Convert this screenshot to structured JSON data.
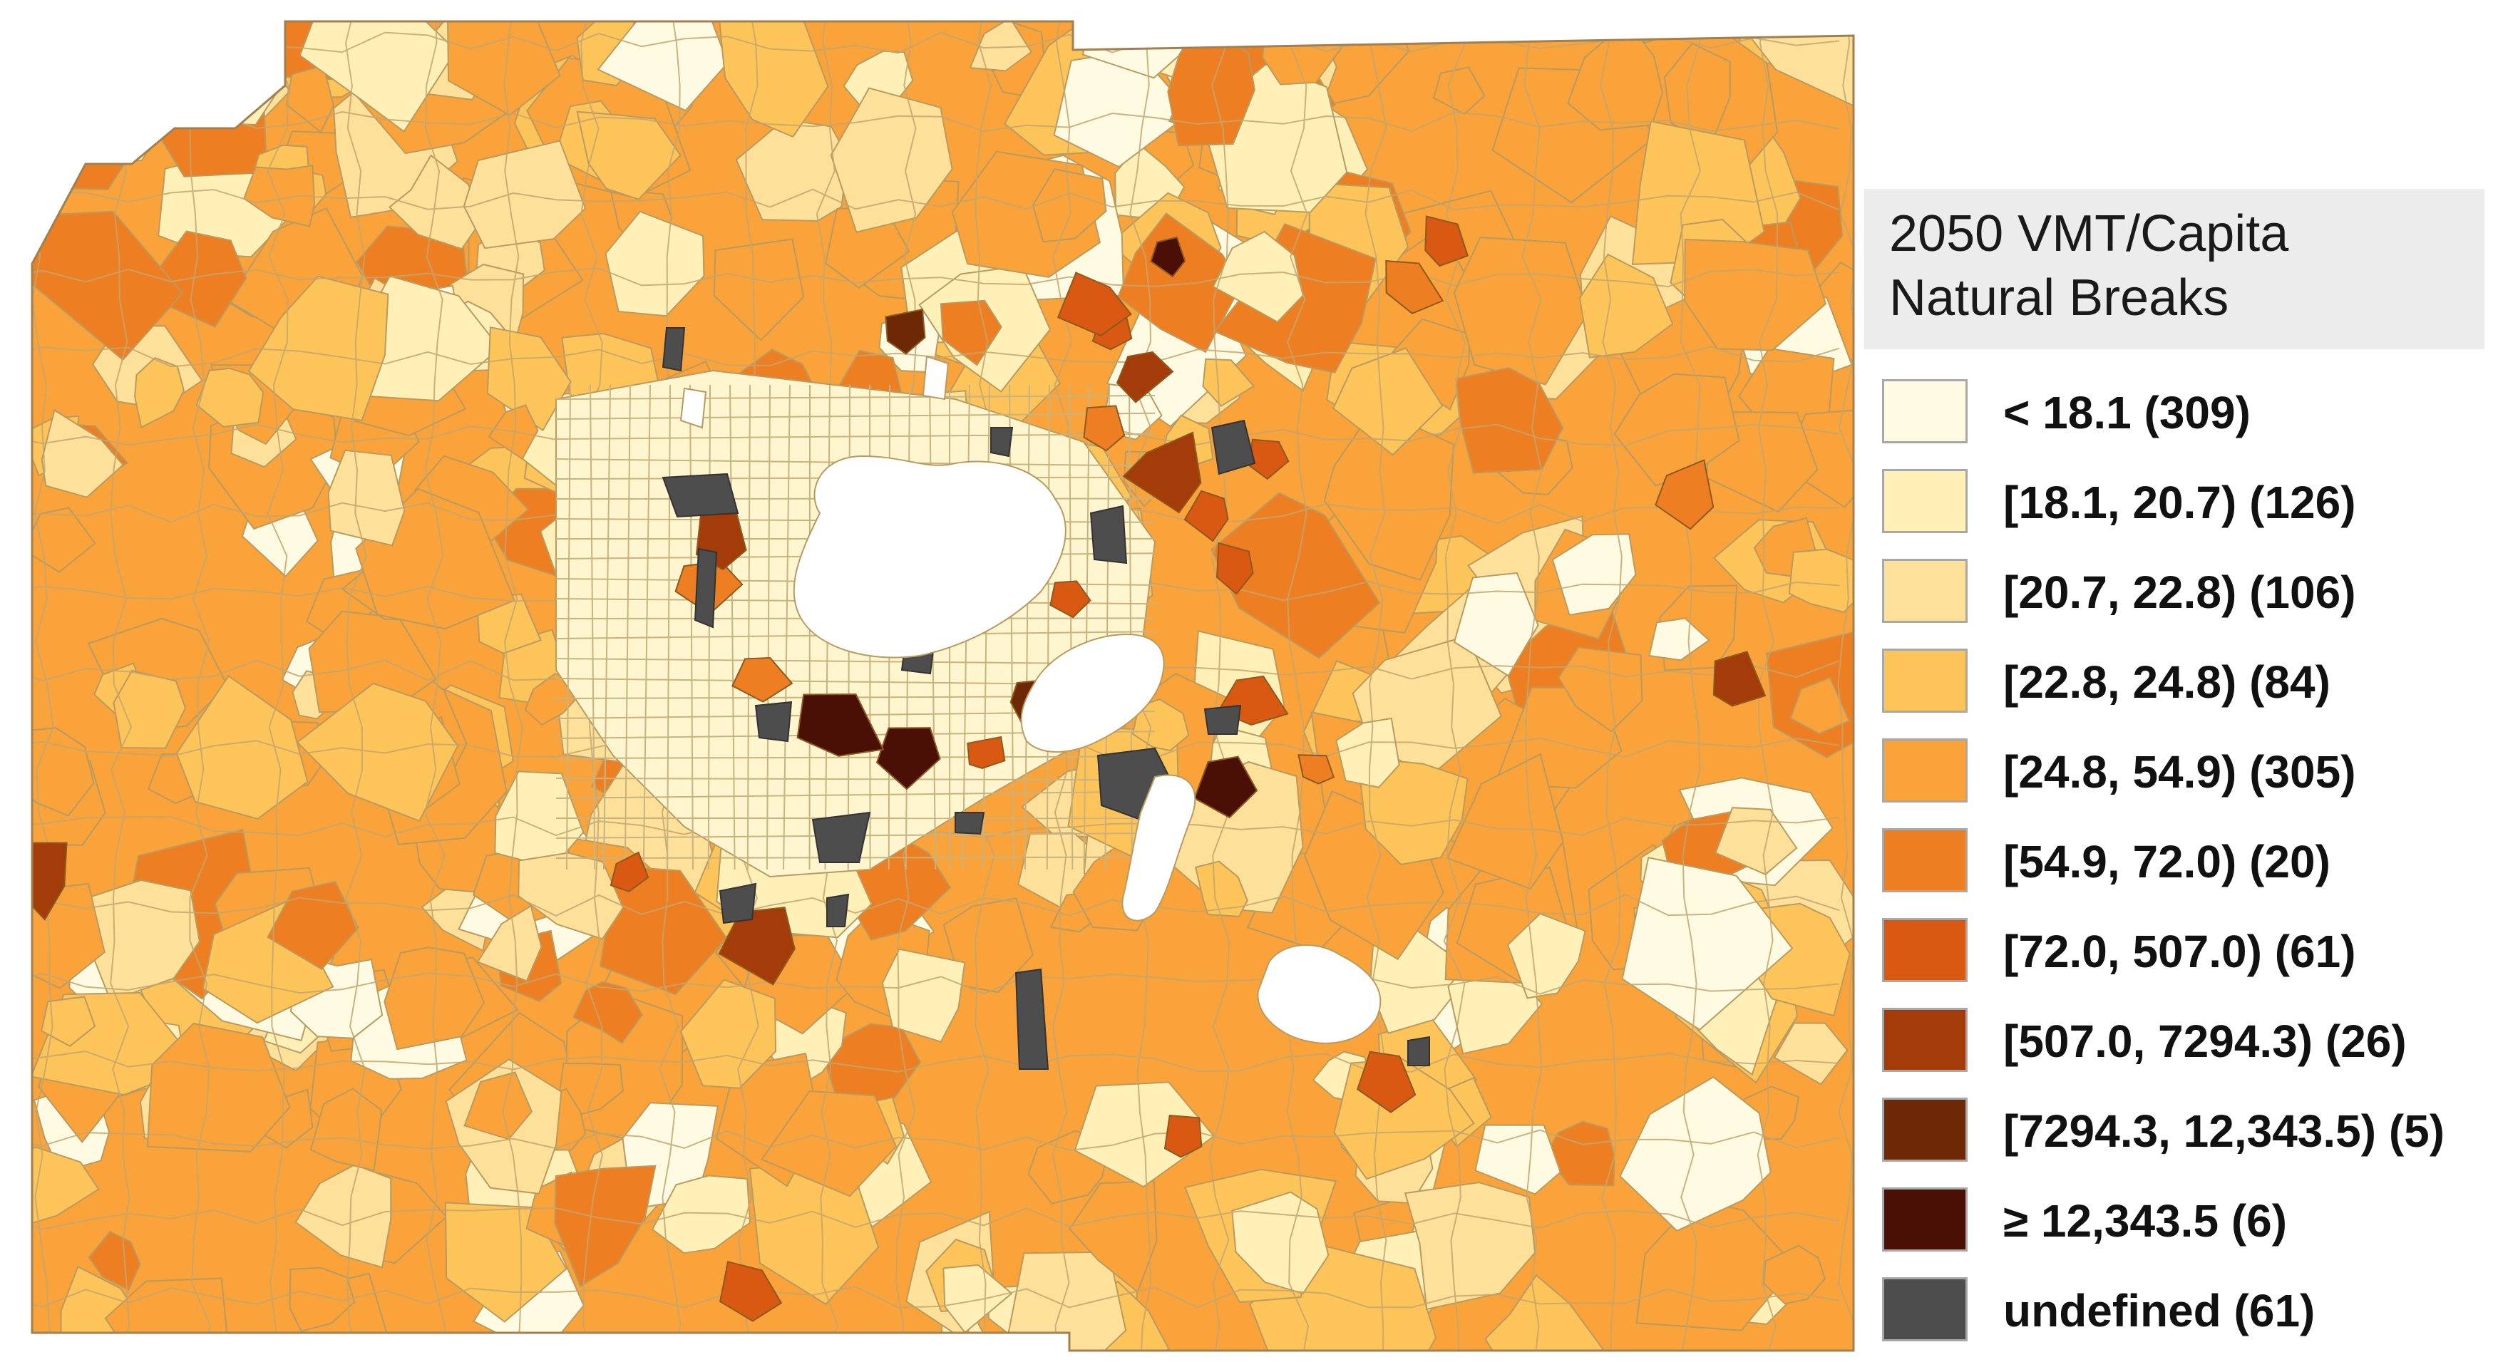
{
  "legend": {
    "title_line1": "2050 VMT/Capita",
    "title_line2": "Natural Breaks",
    "items": [
      {
        "label": "< 18.1 (309)",
        "color": "#fffbe2"
      },
      {
        "label": "[18.1, 20.7) (126)",
        "color": "#fff0b8"
      },
      {
        "label": "[20.7, 22.8) (106)",
        "color": "#fde19a"
      },
      {
        "label": "[22.8, 24.8) (84)",
        "color": "#fdc45a"
      },
      {
        "label": "[24.8, 54.9) (305)",
        "color": "#f9a33a"
      },
      {
        "label": "[54.9, 72.0) (20)",
        "color": "#ee7e22"
      },
      {
        "label": "[72.0, 507.0) (61)",
        "color": "#d95812"
      },
      {
        "label": "[507.0, 7294.3) (26)",
        "color": "#a33c08"
      },
      {
        "label": "[7294.3, 12,343.5) (5)",
        "color": "#6d2806"
      },
      {
        "label": "≥ 12,343.5 (6)",
        "color": "#4a1005"
      },
      {
        "label": "undefined (61)",
        "color": "#4d4d4d"
      }
    ]
  },
  "map": {
    "water_color": "#ffffff",
    "boundary_color": "#b99a60"
  }
}
